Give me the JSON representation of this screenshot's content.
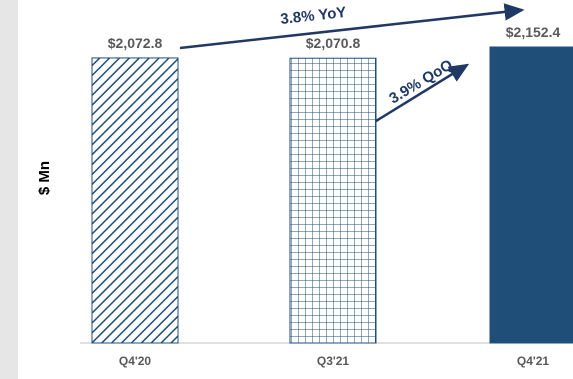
{
  "chart_data": {
    "type": "bar",
    "ylabel": "$ Mn",
    "categories": [
      "Q4'20",
      "Q3'21",
      "Q4'21"
    ],
    "values": [
      2072.8,
      2070.8,
      2152.4
    ],
    "value_labels": [
      "$2,072.8",
      "$2,070.8",
      "$2,152.4"
    ],
    "bar_styles": [
      "diagonal-hatch",
      "grid-hatch",
      "solid"
    ],
    "ylim": [
      0,
      2152.4
    ],
    "grid": false,
    "legend": "none",
    "annotations": [
      {
        "text": "3.8% YoY",
        "from": "Q4'20",
        "to": "Q4'21"
      },
      {
        "text": "3.9% QoQ",
        "from": "Q3'21",
        "to": "Q4'21"
      }
    ]
  },
  "colors": {
    "bar": "#1f4e79",
    "arrow": "#1f3864",
    "label": "#595959",
    "axis": "#bfbfbf",
    "background": "#e6e6e6"
  }
}
